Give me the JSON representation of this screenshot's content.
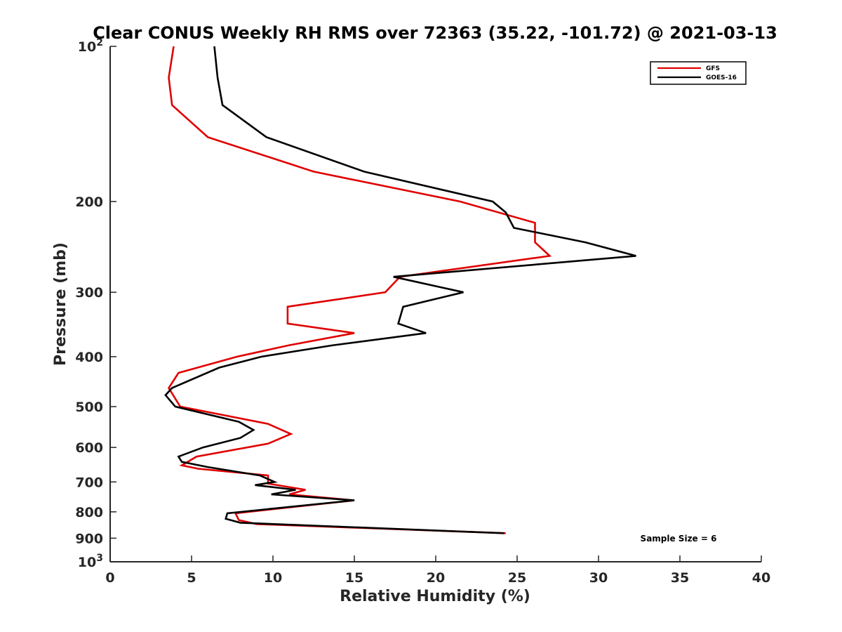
{
  "chart_data": {
    "type": "line",
    "title": "Clear CONUS Weekly RH RMS over 72363 (35.22, -101.72) @ 2021-03-13",
    "xlabel": "Relative Humidity (%)",
    "ylabel": "Pressure (mb)",
    "xlim": [
      0,
      40
    ],
    "ylim": [
      100,
      1000
    ],
    "y_scale": "log",
    "y_reversed": true,
    "x_ticks": [
      0,
      5,
      10,
      15,
      20,
      25,
      30,
      35,
      40
    ],
    "x_tick_labels": [
      "0",
      "5",
      "10",
      "15",
      "20",
      "25",
      "30",
      "35",
      "40"
    ],
    "y_ticks": [
      100,
      200,
      300,
      400,
      500,
      600,
      700,
      800,
      900,
      1000
    ],
    "y_tick_labels": [
      {
        "base": "10",
        "exp": "2"
      },
      {
        "base": "200",
        "exp": ""
      },
      {
        "base": "300",
        "exp": ""
      },
      {
        "base": "400",
        "exp": ""
      },
      {
        "base": "500",
        "exp": ""
      },
      {
        "base": "600",
        "exp": ""
      },
      {
        "base": "700",
        "exp": ""
      },
      {
        "base": "800",
        "exp": ""
      },
      {
        "base": "900",
        "exp": ""
      },
      {
        "base": "10",
        "exp": "3"
      }
    ],
    "legend_position": "top-right",
    "annotation": "Sample Size = 6",
    "series": [
      {
        "name": "GFS",
        "color": "#e00000",
        "x": [
          3.9,
          3.6,
          3.8,
          6.0,
          12.5,
          21.5,
          26.1,
          26.1,
          27.0,
          17.8,
          16.9,
          10.9,
          10.9,
          15.0,
          11.0,
          7.8,
          4.2,
          3.6,
          4.3,
          9.7,
          11.1,
          9.7,
          5.3,
          4.4,
          5.4,
          9.7,
          9.7,
          12.0,
          11.0,
          15.0,
          7.7,
          7.9,
          9.0,
          24.3
        ],
        "y": [
          100,
          115,
          130,
          150,
          175,
          200,
          220,
          240,
          255,
          280,
          300,
          320,
          345,
          360,
          380,
          400,
          430,
          460,
          500,
          540,
          565,
          590,
          625,
          650,
          660,
          680,
          705,
          725,
          740,
          760,
          805,
          830,
          845,
          880
        ]
      },
      {
        "name": "GOES-16",
        "color": "#000000",
        "x": [
          6.4,
          6.6,
          6.9,
          9.6,
          15.6,
          23.5,
          24.3,
          24.8,
          29.2,
          32.3,
          17.4,
          21.7,
          18.0,
          17.7,
          19.4,
          13.7,
          9.3,
          6.7,
          3.8,
          3.4,
          4.0,
          7.9,
          8.8,
          8.0,
          5.7,
          4.2,
          4.4,
          6.0,
          9.2,
          10.1,
          8.9,
          11.4,
          9.9,
          15.0,
          7.2,
          7.1,
          8.0,
          24.2
        ],
        "y": [
          100,
          115,
          130,
          150,
          175,
          200,
          210,
          225,
          240,
          255,
          280,
          300,
          320,
          345,
          360,
          380,
          400,
          420,
          460,
          475,
          500,
          535,
          555,
          575,
          600,
          625,
          640,
          655,
          680,
          700,
          710,
          725,
          740,
          760,
          805,
          825,
          840,
          880
        ]
      }
    ]
  }
}
